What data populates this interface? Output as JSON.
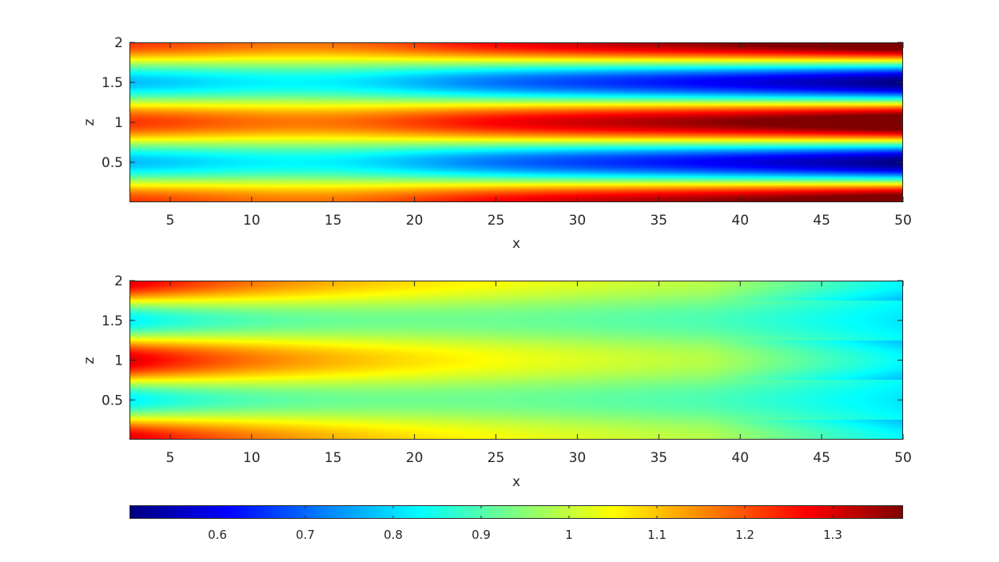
{
  "chart_data": [
    {
      "type": "heatmap",
      "title": "",
      "xlabel": "x",
      "ylabel": "z",
      "xlim": [
        2.5,
        50
      ],
      "ylim": [
        0,
        2
      ],
      "xticks": [
        5,
        10,
        15,
        20,
        25,
        30,
        35,
        40,
        45,
        50
      ],
      "yticks": [
        0.5,
        1,
        1.5,
        2
      ],
      "colormap": "jet",
      "clim": [
        0.5,
        1.38
      ],
      "field": "modulated-cos",
      "model": {
        "base": 1.0,
        "amplitude_start": 0.24,
        "amplitude_end": 0.36,
        "amplitude_decay": 14,
        "phase_growth": 0.75,
        "wavelength_z": 1,
        "center_z": 1
      }
    },
    {
      "type": "heatmap",
      "title": "",
      "xlabel": "x",
      "ylabel": "z",
      "xlim": [
        2.5,
        50
      ],
      "ylim": [
        0,
        2
      ],
      "xticks": [
        5,
        10,
        15,
        20,
        25,
        30,
        35,
        40,
        45,
        50
      ],
      "yticks": [
        0.5,
        1,
        1.5,
        2
      ],
      "colormap": "jet",
      "clim": [
        0.5,
        1.38
      ],
      "field": "decaying-cos",
      "model": {
        "mean_start": 1.06,
        "mean_end": 0.9,
        "amplitude_start": 0.24,
        "amplitude_min": 0.04,
        "amplitude_decay": 10,
        "amplitude_regrow": 0.001,
        "wavelength_z": 1,
        "center_z": 1
      }
    }
  ],
  "colorbar": {
    "colormap": "jet",
    "range": [
      0.5,
      1.38
    ],
    "ticks": [
      0.6,
      0.7,
      0.8,
      0.9,
      1,
      1.1,
      1.2,
      1.3
    ],
    "tick_labels": [
      "0.6",
      "0.7",
      "0.8",
      "0.9",
      "1",
      "1.1",
      "1.2",
      "1.3"
    ]
  },
  "colors": {
    "axis": "#262626",
    "background": "#ffffff"
  }
}
